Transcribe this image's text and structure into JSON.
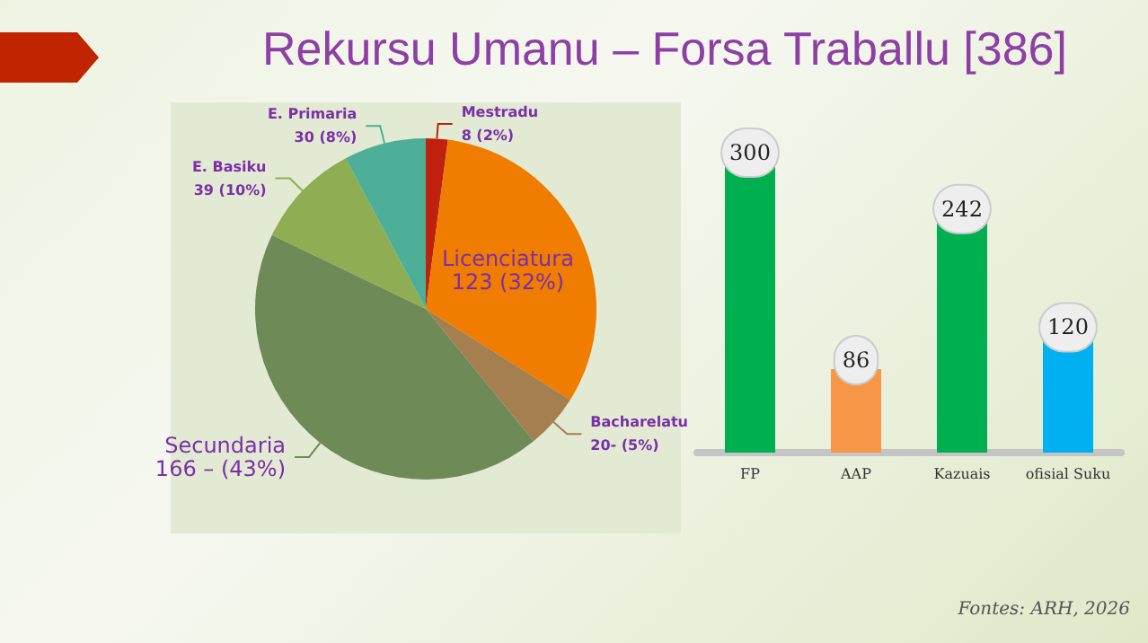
{
  "chart_data": [
    {
      "type": "pie",
      "title": "Rekursu Umanu – Forsa Traballu [386]",
      "categories": [
        "Mestradu",
        "Licenciatura",
        "Bacharelatu",
        "Secundaria",
        "E. Basiku",
        "E. Primaria"
      ],
      "values": [
        8,
        123,
        20,
        166,
        39,
        30
      ],
      "value_labels": [
        "8 (2%)",
        "123 (32%)",
        "20- (5%)",
        "166 – (43%)",
        "39 (10%)",
        "30 (8%)"
      ],
      "colors": [
        "#c0200e",
        "#f07c00",
        "#a57f50",
        "#6e8a57",
        "#8fad52",
        "#4daf97"
      ]
    },
    {
      "type": "bar",
      "categories": [
        "FP",
        "AAP",
        "Kazuais",
        "ofisial Suku"
      ],
      "values": [
        300,
        86,
        242,
        120
      ],
      "colors": [
        "#00b050",
        "#f79646",
        "#00b050",
        "#00b0f0"
      ],
      "data_labels": true,
      "annotations": [
        "Fontes: ARH, 2026"
      ]
    }
  ]
}
